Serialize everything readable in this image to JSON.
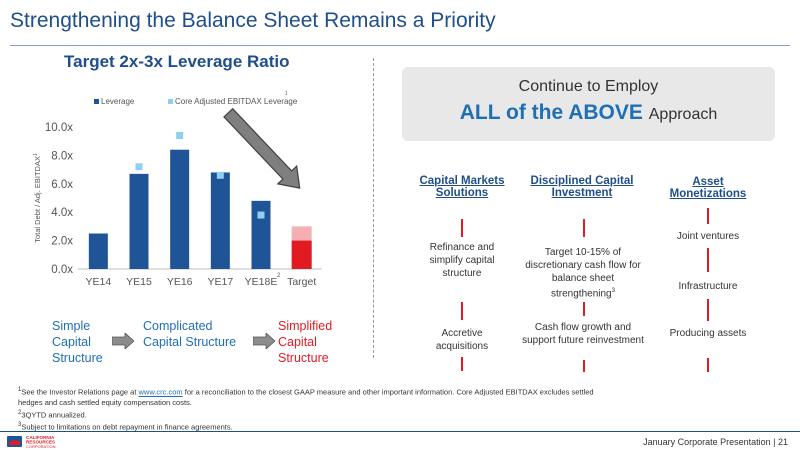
{
  "header": {
    "title": "Strengthening the Balance Sheet Remains a Priority"
  },
  "chart_data": {
    "type": "bar",
    "title": "Target 2x-3x Leverage Ratio",
    "ylabel": "Total Debt / Adj. EBITDAX",
    "ylabel_sup": "1",
    "categories": [
      "YE14",
      "YE15",
      "YE16",
      "YE17",
      "YE18E",
      "Target"
    ],
    "category_sup": {
      "YE18E": "2"
    },
    "ylim": [
      0,
      10
    ],
    "yticks": [
      "0.0x",
      "2.0x",
      "4.0x",
      "6.0x",
      "8.0x",
      "10.0x"
    ],
    "series": [
      {
        "name": "Leverage",
        "type": "bar",
        "color": "#1f5596",
        "values": [
          2.5,
          6.7,
          8.4,
          6.8,
          4.8,
          null
        ]
      },
      {
        "name": "Core Adjusted EBITDAX Leverage",
        "name_sup": "1",
        "type": "marker",
        "color": "#8fcfef",
        "values": [
          null,
          7.2,
          9.4,
          6.6,
          3.8,
          null
        ]
      }
    ],
    "target_bar": {
      "range": [
        2,
        3
      ],
      "color": "#e21b23"
    },
    "trend_arrow": {
      "color": "#7f7f7f"
    },
    "grid": false,
    "legend": "top"
  },
  "chart_flow": {
    "simple": "Simple Capital Structure",
    "complicated": "Complicated Capital Structure",
    "simplified": "Simplified Capital Structure"
  },
  "approach": {
    "line1": "Continue to Employ",
    "line2_bold": "ALL of the ABOVE",
    "line2_rest": "Approach"
  },
  "columns": [
    {
      "head": "Capital Markets Solutions",
      "items": [
        "Refinance and simplify capital structure",
        "Accretive acquisitions"
      ]
    },
    {
      "head": "Disciplined Capital Investment",
      "items": [
        "Target 10-15% of discretionary cash flow for balance sheet strengthening",
        "Cash flow growth and support future reinvestment"
      ],
      "item_sup": {
        "0": "3"
      }
    },
    {
      "head": "Asset Monetizations",
      "items": [
        "Joint ventures",
        "Infrastructure",
        "Producing assets"
      ]
    }
  ],
  "footnotes": {
    "f1_sup": "1",
    "f1_a": "See the Investor Relations page at ",
    "f1_link": "www.crc.com",
    "f1_b": " for a reconciliation to the closest GAAP measure and other important information. Core Adjusted EBITDAX excludes settled hedges and cash settled equity compensation costs.",
    "f2_sup": "2",
    "f2": "3QYTD annualized.",
    "f3_sup": "3",
    "f3": "Subject to limitations on debt repayment in finance agreements."
  },
  "footer": {
    "text": "January Corporate Presentation | 21",
    "logo_line1": "CALIFORNIA",
    "logo_line2": "RESOURCES",
    "logo_line3": "CORPORATION"
  }
}
